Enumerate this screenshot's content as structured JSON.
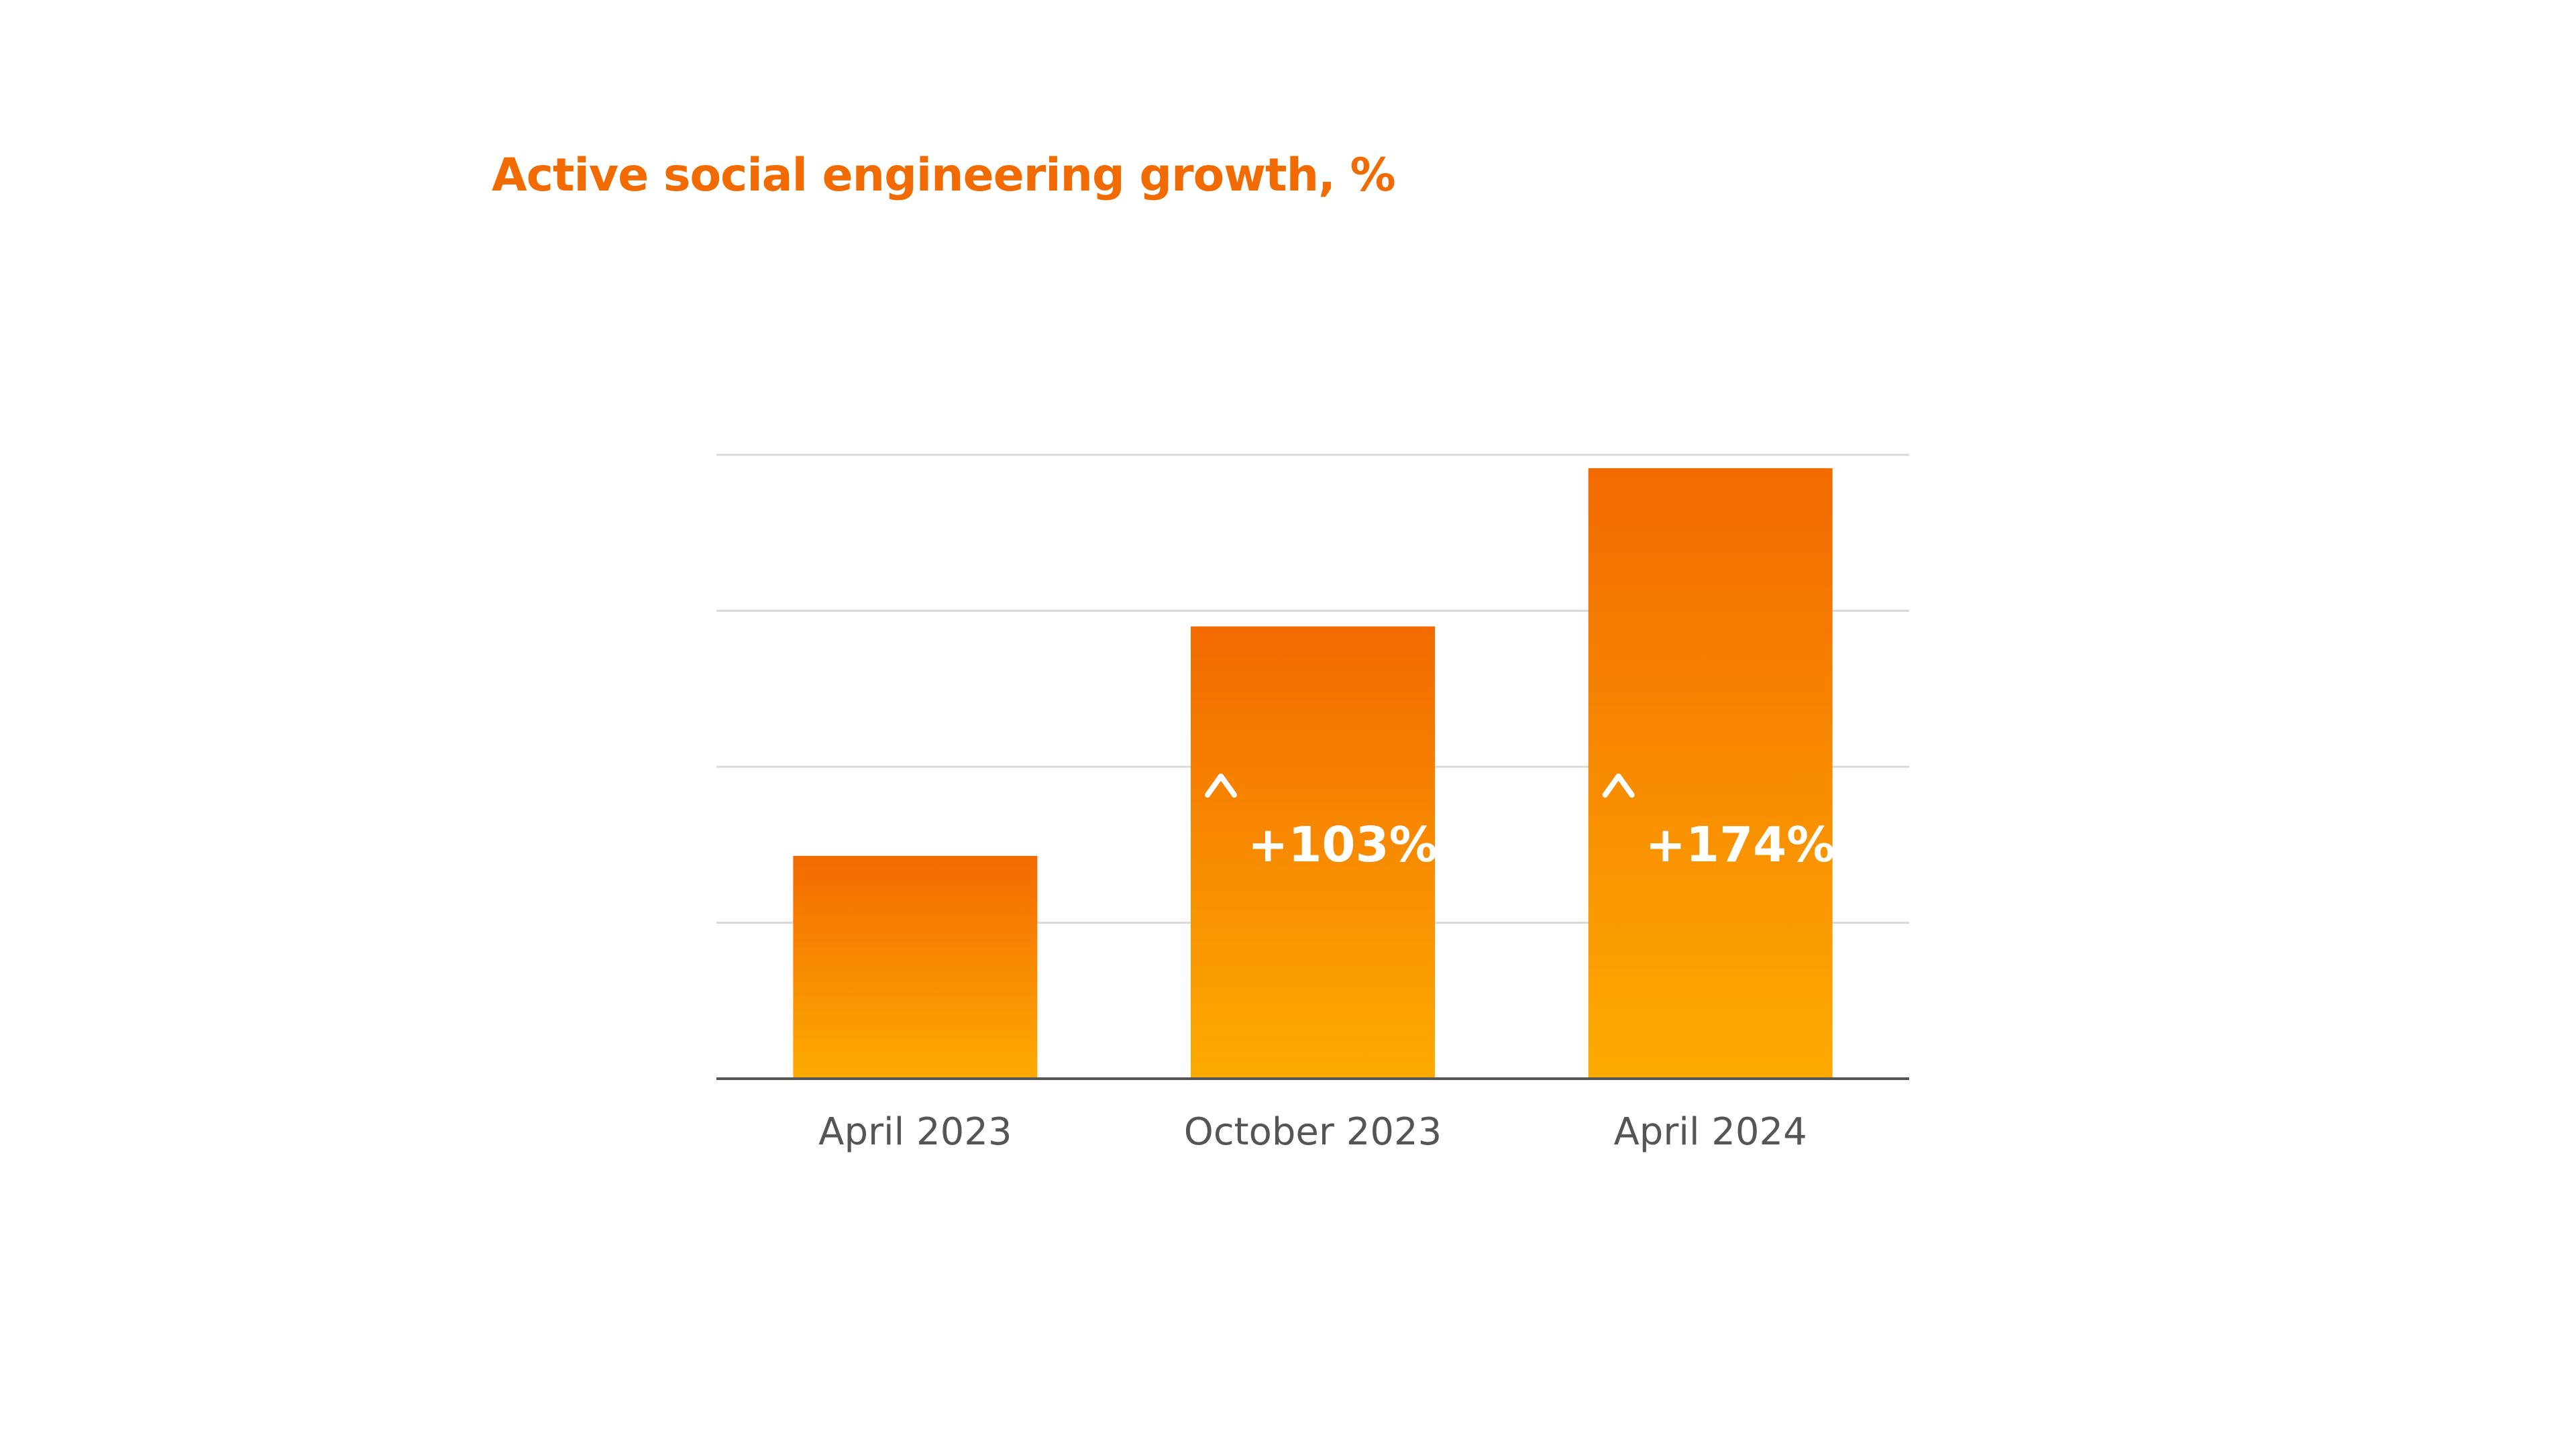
{
  "colors": {
    "title": "#F26B00",
    "bar_top": "#F26A00",
    "bar_bottom": "#FDAB00",
    "grid": "#D9D9D9",
    "baseline": "#555555",
    "tick_text": "#555555",
    "label_text": "#FFFFFF"
  },
  "chart_data": {
    "type": "bar",
    "title": "Active social engineering growth, %",
    "xlabel": "",
    "ylabel": "",
    "categories": [
      "April 2023",
      "October 2023",
      "April 2024"
    ],
    "values": [
      100,
      203,
      274
    ],
    "data_labels": [
      "",
      "+103%",
      "+174%"
    ],
    "ylim": [
      0,
      280
    ],
    "grid": true,
    "gridlines": 4,
    "legend": "none",
    "icons": [
      "",
      "up-arrow-icon",
      "up-arrow-icon"
    ]
  }
}
